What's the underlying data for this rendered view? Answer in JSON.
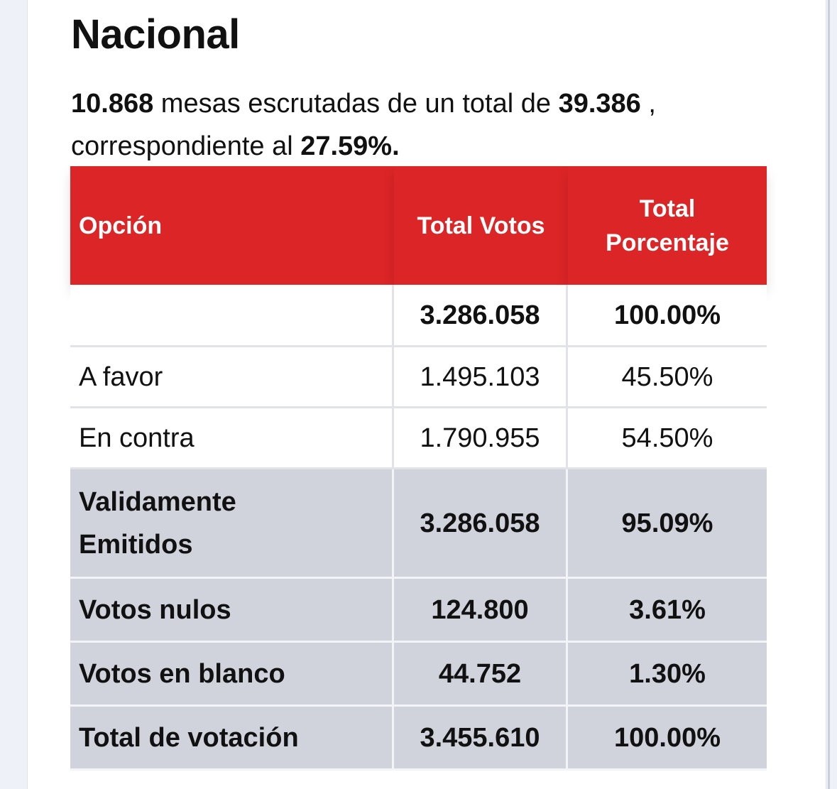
{
  "heading": "Nacional",
  "summary": {
    "mesas_escrutadas": "10.868",
    "text_1": " mesas escrutadas de un total de ",
    "mesas_total": "39.386",
    "text_2": " , correspondiente al ",
    "porcentaje": "27.59%."
  },
  "table": {
    "headers": {
      "opcion": "Opción",
      "total_votos": "Total Votos",
      "total_porcentaje_1": "Total",
      "total_porcentaje_2": "Porcentaje"
    },
    "total_row": {
      "opcion": "",
      "votos": "3.286.058",
      "porcentaje": "100.00%"
    },
    "options": [
      {
        "opcion": "A favor",
        "votos": "1.495.103",
        "porcentaje": "45.50%"
      },
      {
        "opcion": "En contra",
        "votos": "1.790.955",
        "porcentaje": "54.50%"
      }
    ],
    "validos": {
      "opcion_1": "Validamente",
      "opcion_2": "Emitidos",
      "votos": "3.286.058",
      "porcentaje": "95.09%"
    },
    "nulos": {
      "opcion": "Votos nulos",
      "votos": "124.800",
      "porcentaje": "3.61%"
    },
    "blancos": {
      "opcion": "Votos en blanco",
      "votos": "44.752",
      "porcentaje": "1.30%"
    },
    "total_votacion": {
      "opcion": "Total de votación",
      "votos": "3.455.610",
      "porcentaje": "100.00%"
    }
  },
  "colors": {
    "header_red": "#dc2526",
    "summary_gray": "#d0d3db",
    "page_background": "#eef1f7"
  }
}
